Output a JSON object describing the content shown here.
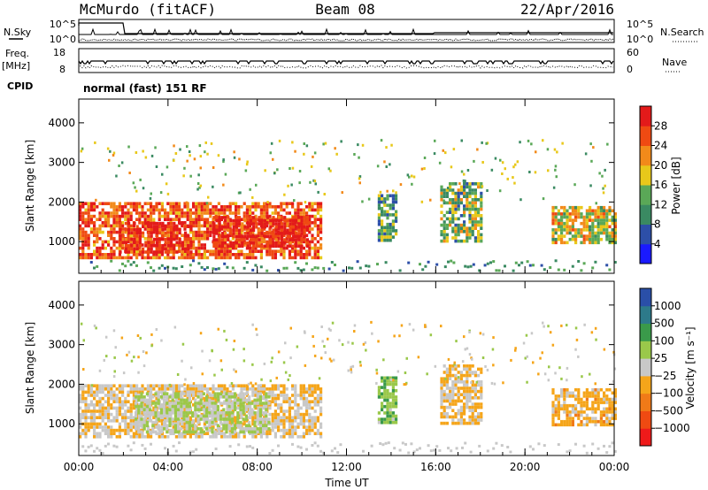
{
  "header": {
    "station": "McMurdo (fitACF)",
    "beam": "Beam 08",
    "date": "22/Apr/2016"
  },
  "strip_labels": {
    "nsky": "N.Sky",
    "nsearch": "N.Search",
    "freq": "Freq.",
    "freq_unit": "[MHz]",
    "nave": "Nave",
    "cpid": "CPID",
    "cpid_value": "normal (fast) 151 RF",
    "nsky_ticks": [
      "10^5",
      "10^0"
    ],
    "nsearch_ticks": [
      "10^5",
      "10^0"
    ],
    "freq_ticks": [
      "18",
      "8"
    ],
    "nave_ticks": [
      "60",
      "0"
    ]
  },
  "colors": {
    "power": [
      "#1a1aff",
      "#2d4fa8",
      "#3a8a62",
      "#5aa857",
      "#e8c81a",
      "#f28a1a",
      "#ef4a12",
      "#e31a1a"
    ],
    "velocity": [
      "#ef1a1a",
      "#ef4a12",
      "#f07a18",
      "#f5a51a",
      "#c8c8c8",
      "#9ac84a",
      "#3a9a4a",
      "#2d7a8a",
      "#2a4fa8"
    ]
  },
  "chart_data": [
    {
      "type": "heatmap",
      "name": "power",
      "xlabel": "",
      "ylabel": "Slant Range [km]",
      "x_ticks": [
        "00:00",
        "04:00",
        "08:00",
        "12:00",
        "16:00",
        "20:00",
        "00:00"
      ],
      "y_ticks": [
        1000,
        2000,
        3000,
        4000
      ],
      "xlim": [
        0,
        24
      ],
      "ylim": [
        200,
        4600
      ],
      "colorbar": {
        "label": "Power [dB]",
        "ticks": [
          4,
          8,
          12,
          16,
          20,
          24,
          28
        ],
        "range": [
          0,
          32
        ]
      },
      "echo_regions": [
        {
          "t0": 0.0,
          "t1": 10.8,
          "r0": 600,
          "r1": 2000,
          "value": 26
        },
        {
          "t0": 1.8,
          "t1": 5.0,
          "r0": 700,
          "r1": 1500,
          "value": 30
        },
        {
          "t0": 6.0,
          "t1": 10.2,
          "r0": 850,
          "r1": 1650,
          "value": 30
        },
        {
          "t0": 13.4,
          "t1": 14.2,
          "r0": 1000,
          "r1": 2200,
          "value": 12
        },
        {
          "t0": 16.2,
          "t1": 18.0,
          "r0": 1000,
          "r1": 2500,
          "value": 14
        },
        {
          "t0": 21.2,
          "t1": 24.0,
          "r0": 1000,
          "r1": 1900,
          "value": 18
        }
      ]
    },
    {
      "type": "heatmap",
      "name": "velocity",
      "xlabel": "Time UT",
      "ylabel": "Slant Range [km]",
      "x_ticks": [
        "00:00",
        "04:00",
        "08:00",
        "12:00",
        "16:00",
        "20:00",
        "00:00"
      ],
      "y_ticks": [
        1000,
        2000,
        3000,
        4000
      ],
      "xlim": [
        0,
        24
      ],
      "ylim": [
        200,
        4600
      ],
      "colorbar": {
        "label": "Velocity [m s⁻¹]",
        "ticks": [
          "1000",
          "500",
          "100",
          "25",
          "−25",
          "−100",
          "−500",
          "−1000"
        ],
        "range": [
          -1500,
          1500
        ]
      },
      "echo_regions": [
        {
          "t0": 0.0,
          "t1": 10.8,
          "r0": 700,
          "r1": 2000,
          "value": -150
        },
        {
          "t0": 2.5,
          "t1": 8.5,
          "r0": 800,
          "r1": 1800,
          "value": 150
        },
        {
          "t0": 13.4,
          "t1": 14.2,
          "r0": 1000,
          "r1": 2200,
          "value": 400
        },
        {
          "t0": 16.2,
          "t1": 18.0,
          "r0": 1000,
          "r1": 2500,
          "value": -200
        },
        {
          "t0": 21.2,
          "t1": 24.0,
          "r0": 1000,
          "r1": 1900,
          "value": -300
        }
      ]
    }
  ]
}
